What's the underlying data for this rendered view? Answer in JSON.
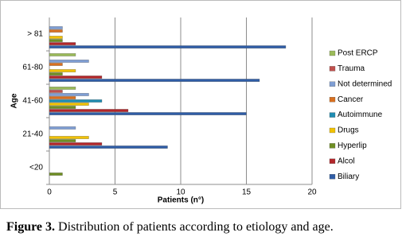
{
  "chart_data": {
    "type": "hbar",
    "caption_label": "Figure 3.",
    "caption": "Distribution of patients according to etiology and age.",
    "x_label": "Patients (n°)",
    "y_label": "Age",
    "categories": [
      "<20",
      "21-40",
      "41-60",
      "61-80",
      "> 81"
    ],
    "series": [
      {
        "name": "Biliary",
        "color": "#2f5da6",
        "values": [
          0,
          9,
          15,
          16,
          18
        ]
      },
      {
        "name": "Alcol",
        "color": "#b3262a",
        "values": [
          0,
          4,
          6,
          4,
          2
        ]
      },
      {
        "name": "Hyperlip",
        "color": "#6f8f23",
        "values": [
          1,
          2,
          2,
          1,
          1
        ]
      },
      {
        "name": "Drugs",
        "color": "#f2c200",
        "values": [
          0,
          3,
          3,
          2,
          1
        ]
      },
      {
        "name": "Autoimmune",
        "color": "#1f8db2",
        "values": [
          0,
          0,
          4,
          0,
          0
        ]
      },
      {
        "name": "Cancer",
        "color": "#d9701f",
        "values": [
          0,
          0,
          2,
          1,
          1
        ]
      },
      {
        "name": "Not determined",
        "color": "#7f9ed4",
        "values": [
          0,
          2,
          3,
          3,
          1
        ]
      },
      {
        "name": "Trauma",
        "color": "#c0504d",
        "values": [
          0,
          0,
          1,
          0,
          0
        ]
      },
      {
        "name": "Post ERCP",
        "color": "#9bbb59",
        "values": [
          0,
          0,
          2,
          2,
          0
        ]
      }
    ],
    "xlim": [
      0,
      20
    ],
    "xticks": [
      0,
      5,
      10,
      15,
      20
    ],
    "grid": true,
    "legend": "right"
  }
}
